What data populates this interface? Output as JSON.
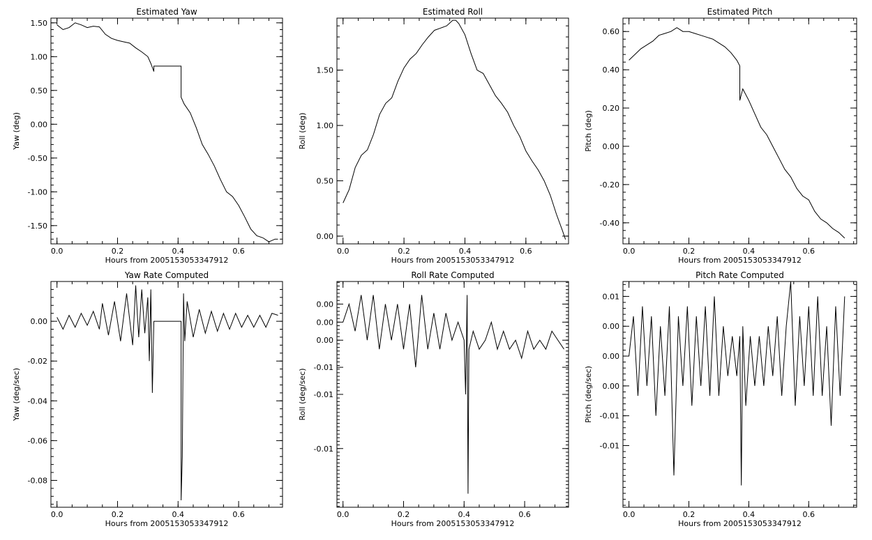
{
  "chart_data": [
    {
      "type": "line",
      "title": "Estimated Yaw",
      "xlabel": "Hours from 2005153053347912",
      "ylabel": "Yaw (deg)",
      "xlim": [
        -0.02,
        0.745
      ],
      "ylim": [
        -1.77,
        1.57
      ],
      "x_ticks": [
        0,
        0.2,
        0.4,
        0.6
      ],
      "x_tick_labels": [
        "0.0",
        "0.2",
        "0.4",
        "0.6"
      ],
      "y_ticks": [
        1.5,
        1.0,
        0.5,
        0.0,
        -0.5,
        -1.0,
        -1.5
      ],
      "y_tick_labels": [
        "1.50",
        "1.00",
        "0.50",
        "0.00",
        "-0.50",
        "-1.00",
        "-1.50"
      ],
      "series": [
        {
          "x": [
            0.0,
            0.02,
            0.04,
            0.06,
            0.08,
            0.1,
            0.12,
            0.14,
            0.16,
            0.18,
            0.2,
            0.22,
            0.24,
            0.26,
            0.28,
            0.3,
            0.31,
            0.32,
            0.32,
            0.41,
            0.41,
            0.42,
            0.44,
            0.46,
            0.48,
            0.5,
            0.52,
            0.54,
            0.56,
            0.58,
            0.6,
            0.62,
            0.64,
            0.66,
            0.68,
            0.7,
            0.72,
            0.73
          ],
          "y": [
            1.47,
            1.4,
            1.43,
            1.5,
            1.47,
            1.43,
            1.45,
            1.44,
            1.33,
            1.27,
            1.24,
            1.22,
            1.2,
            1.13,
            1.07,
            1.0,
            0.9,
            0.78,
            0.86,
            0.86,
            0.4,
            0.3,
            0.17,
            -0.05,
            -0.3,
            -0.45,
            -0.62,
            -0.82,
            -1.0,
            -1.07,
            -1.2,
            -1.37,
            -1.55,
            -1.65,
            -1.68,
            -1.74,
            -1.7,
            -1.7
          ]
        }
      ]
    },
    {
      "type": "line",
      "title": "Estimated Roll",
      "xlabel": "Hours from 2005153053347912",
      "ylabel": "Roll (deg)",
      "xlim": [
        -0.02,
        0.74
      ],
      "ylim": [
        -0.07,
        1.97
      ],
      "x_ticks": [
        0,
        0.2,
        0.4,
        0.6
      ],
      "x_tick_labels": [
        "0.0",
        "0.2",
        "0.4",
        "0.6"
      ],
      "y_ticks": [
        1.5,
        1.0,
        0.5,
        0.0
      ],
      "y_tick_labels": [
        "1.50",
        "1.00",
        "0.50",
        "0.00"
      ],
      "series": [
        {
          "x": [
            0.0,
            0.02,
            0.04,
            0.06,
            0.08,
            0.1,
            0.12,
            0.14,
            0.16,
            0.18,
            0.2,
            0.22,
            0.24,
            0.26,
            0.28,
            0.3,
            0.32,
            0.34,
            0.36,
            0.37,
            0.38,
            0.4,
            0.42,
            0.44,
            0.46,
            0.48,
            0.5,
            0.52,
            0.54,
            0.56,
            0.58,
            0.6,
            0.62,
            0.64,
            0.66,
            0.68,
            0.7,
            0.72,
            0.73
          ],
          "y": [
            0.3,
            0.42,
            0.62,
            0.73,
            0.78,
            0.92,
            1.1,
            1.2,
            1.25,
            1.4,
            1.52,
            1.6,
            1.65,
            1.73,
            1.8,
            1.86,
            1.88,
            1.9,
            1.95,
            1.95,
            1.92,
            1.82,
            1.65,
            1.5,
            1.47,
            1.37,
            1.27,
            1.2,
            1.12,
            1.0,
            0.9,
            0.77,
            0.68,
            0.6,
            0.5,
            0.37,
            0.2,
            0.05,
            -0.03
          ]
        }
      ]
    },
    {
      "type": "line",
      "title": "Estimated Pitch",
      "xlabel": "Hours from 2005153053347912",
      "ylabel": "Pitch (deg)",
      "xlim": [
        -0.02,
        0.76
      ],
      "ylim": [
        -0.51,
        0.67
      ],
      "x_ticks": [
        0,
        0.2,
        0.4,
        0.6
      ],
      "x_tick_labels": [
        "0.0",
        "0.2",
        "0.4",
        "0.6"
      ],
      "y_ticks": [
        0.6,
        0.4,
        0.2,
        0.0,
        -0.2,
        -0.4
      ],
      "y_tick_labels": [
        "0.60",
        "0.40",
        "0.20",
        "0.00",
        "-0.20",
        "-0.40"
      ],
      "series": [
        {
          "x": [
            0.0,
            0.02,
            0.04,
            0.06,
            0.08,
            0.1,
            0.12,
            0.14,
            0.16,
            0.18,
            0.2,
            0.22,
            0.24,
            0.26,
            0.28,
            0.3,
            0.32,
            0.34,
            0.36,
            0.37,
            0.37,
            0.38,
            0.4,
            0.42,
            0.44,
            0.46,
            0.48,
            0.5,
            0.52,
            0.54,
            0.56,
            0.58,
            0.6,
            0.62,
            0.64,
            0.66,
            0.68,
            0.7,
            0.72
          ],
          "y": [
            0.45,
            0.48,
            0.51,
            0.53,
            0.55,
            0.58,
            0.59,
            0.6,
            0.62,
            0.6,
            0.6,
            0.59,
            0.58,
            0.57,
            0.56,
            0.54,
            0.52,
            0.49,
            0.45,
            0.42,
            0.24,
            0.3,
            0.24,
            0.17,
            0.1,
            0.06,
            0.0,
            -0.06,
            -0.12,
            -0.16,
            -0.22,
            -0.26,
            -0.28,
            -0.34,
            -0.38,
            -0.4,
            -0.43,
            -0.45,
            -0.48
          ]
        }
      ]
    },
    {
      "type": "line",
      "title": "Yaw Rate Computed",
      "xlabel": "Hours from 2005153053347912",
      "ylabel": "Yaw (deg/sec)",
      "xlim": [
        -0.02,
        0.745
      ],
      "ylim": [
        -0.0935,
        0.02
      ],
      "x_ticks": [
        0,
        0.2,
        0.4,
        0.6
      ],
      "x_tick_labels": [
        "0.0",
        "0.2",
        "0.4",
        "0.6"
      ],
      "y_ticks": [
        0.0,
        -0.02,
        -0.04,
        -0.06,
        -0.08
      ],
      "y_tick_labels": [
        "0.00",
        "-0.02",
        "-0.04",
        "-0.06",
        "-0.08"
      ],
      "series": [
        {
          "x": [
            0.0,
            0.02,
            0.04,
            0.06,
            0.08,
            0.1,
            0.12,
            0.14,
            0.15,
            0.17,
            0.19,
            0.21,
            0.23,
            0.25,
            0.26,
            0.27,
            0.28,
            0.29,
            0.3,
            0.305,
            0.31,
            0.315,
            0.32,
            0.325,
            0.32,
            0.41,
            0.41,
            0.414,
            0.418,
            0.422,
            0.43,
            0.45,
            0.47,
            0.49,
            0.51,
            0.53,
            0.55,
            0.57,
            0.59,
            0.61,
            0.63,
            0.65,
            0.67,
            0.69,
            0.71,
            0.73
          ],
          "y": [
            0.002,
            -0.004,
            0.003,
            -0.003,
            0.004,
            -0.002,
            0.005,
            -0.004,
            0.009,
            -0.007,
            0.01,
            -0.01,
            0.014,
            -0.012,
            0.018,
            -0.008,
            0.016,
            -0.006,
            0.012,
            -0.02,
            0.016,
            -0.036,
            0.0,
            0.0,
            0.0,
            0.0,
            -0.09,
            -0.068,
            0.014,
            -0.01,
            0.01,
            -0.008,
            0.006,
            -0.006,
            0.005,
            -0.005,
            0.004,
            -0.004,
            0.004,
            -0.003,
            0.003,
            -0.003,
            0.003,
            -0.003,
            0.004,
            0.003
          ]
        }
      ]
    },
    {
      "type": "line",
      "title": "Roll Rate Computed",
      "xlabel": "Hours from 2005153053347912",
      "ylabel": "Roll (deg/sec)",
      "xlim": [
        -0.02,
        0.745
      ],
      "ylim": [
        -0.0205,
        0.0045
      ],
      "x_ticks": [
        0,
        0.2,
        0.4,
        0.6
      ],
      "x_tick_labels": [
        "0.0",
        "0.2",
        "0.4",
        "0.6"
      ],
      "y_ticks": [
        0.002,
        0.0,
        -0.002,
        -0.005,
        -0.008,
        -0.014
      ],
      "y_tick_labels": [
        "0.00",
        "0.00",
        "0.00",
        "-0.01",
        "-0.01",
        "-0.01"
      ],
      "series": [
        {
          "x": [
            0.0,
            0.02,
            0.04,
            0.06,
            0.08,
            0.1,
            0.12,
            0.14,
            0.16,
            0.18,
            0.2,
            0.22,
            0.24,
            0.26,
            0.28,
            0.3,
            0.32,
            0.34,
            0.36,
            0.38,
            0.4,
            0.405,
            0.41,
            0.413,
            0.416,
            0.43,
            0.45,
            0.47,
            0.49,
            0.51,
            0.53,
            0.55,
            0.57,
            0.59,
            0.61,
            0.63,
            0.65,
            0.67,
            0.69,
            0.71,
            0.73
          ],
          "y": [
            0.0,
            0.002,
            -0.001,
            0.003,
            -0.002,
            0.003,
            -0.003,
            0.002,
            -0.002,
            0.002,
            -0.003,
            0.002,
            -0.005,
            0.003,
            -0.003,
            0.001,
            -0.003,
            0.001,
            -0.002,
            0.0,
            -0.002,
            -0.008,
            0.003,
            -0.019,
            -0.003,
            -0.001,
            -0.003,
            -0.002,
            0.0,
            -0.003,
            -0.001,
            -0.003,
            -0.002,
            -0.004,
            -0.001,
            -0.003,
            -0.002,
            -0.003,
            -0.001,
            -0.002,
            -0.003
          ]
        }
      ]
    },
    {
      "type": "line",
      "title": "Pitch Rate Computed",
      "xlabel": "Hours from 2005153053347912",
      "ylabel": "Pitch (deg/sec)",
      "xlim": [
        -0.02,
        0.76
      ],
      "ylim": [
        -0.0152,
        0.0075
      ],
      "x_ticks": [
        0,
        0.2,
        0.4,
        0.6
      ],
      "x_tick_labels": [
        "0.0",
        "0.2",
        "0.4",
        "0.6"
      ],
      "y_ticks": [
        0.006,
        0.003,
        0.0,
        -0.003,
        -0.006,
        -0.009
      ],
      "y_tick_labels": [
        "0.01",
        "0.00",
        "0.00",
        "0.00",
        "-0.01",
        "-0.01"
      ],
      "series": [
        {
          "x": [
            0.0,
            0.015,
            0.03,
            0.045,
            0.06,
            0.075,
            0.09,
            0.105,
            0.12,
            0.135,
            0.15,
            0.165,
            0.18,
            0.195,
            0.21,
            0.225,
            0.24,
            0.255,
            0.27,
            0.285,
            0.3,
            0.315,
            0.33,
            0.345,
            0.36,
            0.37,
            0.375,
            0.38,
            0.39,
            0.405,
            0.42,
            0.435,
            0.45,
            0.465,
            0.48,
            0.495,
            0.51,
            0.525,
            0.54,
            0.555,
            0.57,
            0.585,
            0.6,
            0.615,
            0.63,
            0.645,
            0.66,
            0.675,
            0.69,
            0.705,
            0.72
          ],
          "y": [
            0.0,
            0.004,
            -0.004,
            0.005,
            -0.003,
            0.004,
            -0.006,
            0.003,
            -0.004,
            0.005,
            -0.012,
            0.004,
            -0.003,
            0.005,
            -0.005,
            0.004,
            -0.003,
            0.005,
            -0.004,
            0.006,
            -0.004,
            0.003,
            -0.002,
            0.002,
            -0.002,
            0.002,
            -0.013,
            0.003,
            -0.005,
            0.002,
            -0.003,
            0.002,
            -0.003,
            0.003,
            -0.002,
            0.004,
            -0.004,
            0.003,
            0.0075,
            -0.005,
            0.004,
            -0.003,
            0.005,
            -0.004,
            0.006,
            -0.004,
            0.003,
            -0.007,
            0.005,
            -0.004,
            0.006
          ]
        }
      ]
    }
  ]
}
